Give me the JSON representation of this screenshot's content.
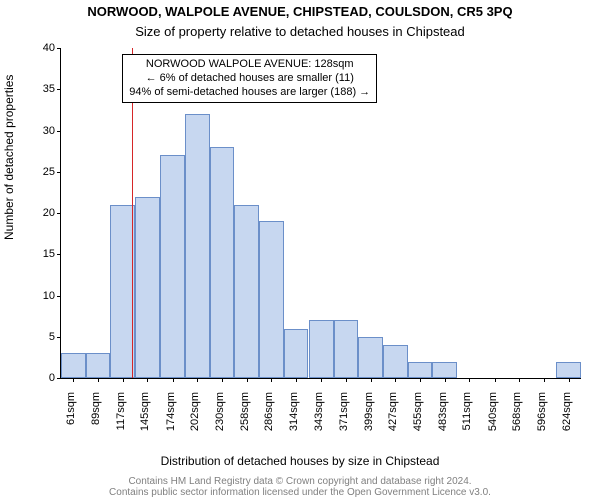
{
  "title_main": "NORWOOD, WALPOLE AVENUE, CHIPSTEAD, COULSDON, CR5 3PQ",
  "title_sub": "Size of property relative to detached houses in Chipstead",
  "ylabel": "Number of detached properties",
  "xlabel": "Distribution of detached houses by size in Chipstead",
  "footer_line1": "Contains HM Land Registry data © Crown copyright and database right 2024.",
  "footer_line2": "Contains public sector information licensed under the Open Government Licence v3.0.",
  "callout": {
    "line1": "NORWOOD WALPOLE AVENUE: 128sqm",
    "line2": "← 6% of detached houses are smaller (11)",
    "line3": "94% of semi-detached houses are larger (188) →"
  },
  "chart": {
    "type": "histogram",
    "background_color": "#ffffff",
    "bar_fill": "#c7d7f0",
    "bar_border": "#6b8fc9",
    "vline_color": "#d62728",
    "vline_x": 128,
    "title_main_fontsize": 13,
    "title_sub_fontsize": 13,
    "axis_label_fontsize": 12,
    "tick_fontsize": 11,
    "callout_fontsize": 11,
    "footer_fontsize": 10,
    "xlim": [
      47,
      638
    ],
    "ylim": [
      0,
      40
    ],
    "ytick_step": 5,
    "xticks": [
      61,
      89,
      117,
      145,
      174,
      202,
      230,
      258,
      286,
      314,
      343,
      371,
      399,
      427,
      455,
      483,
      511,
      540,
      568,
      596,
      624
    ],
    "xtick_labels": [
      "61sqm",
      "89sqm",
      "117sqm",
      "145sqm",
      "174sqm",
      "202sqm",
      "230sqm",
      "258sqm",
      "286sqm",
      "314sqm",
      "343sqm",
      "371sqm",
      "399sqm",
      "427sqm",
      "455sqm",
      "483sqm",
      "511sqm",
      "540sqm",
      "568sqm",
      "596sqm",
      "624sqm"
    ],
    "bar_width_data": 28,
    "bars": [
      {
        "x": 47,
        "h": 0
      },
      {
        "x": 61,
        "h": 3
      },
      {
        "x": 89,
        "h": 3
      },
      {
        "x": 117,
        "h": 21
      },
      {
        "x": 145,
        "h": 22
      },
      {
        "x": 174,
        "h": 27
      },
      {
        "x": 202,
        "h": 32
      },
      {
        "x": 230,
        "h": 28
      },
      {
        "x": 258,
        "h": 21
      },
      {
        "x": 286,
        "h": 19
      },
      {
        "x": 314,
        "h": 6
      },
      {
        "x": 343,
        "h": 7
      },
      {
        "x": 371,
        "h": 7
      },
      {
        "x": 399,
        "h": 5
      },
      {
        "x": 427,
        "h": 4
      },
      {
        "x": 455,
        "h": 2
      },
      {
        "x": 483,
        "h": 2
      },
      {
        "x": 511,
        "h": 0
      },
      {
        "x": 540,
        "h": 0
      },
      {
        "x": 568,
        "h": 0
      },
      {
        "x": 596,
        "h": 0
      },
      {
        "x": 624,
        "h": 2
      }
    ]
  }
}
